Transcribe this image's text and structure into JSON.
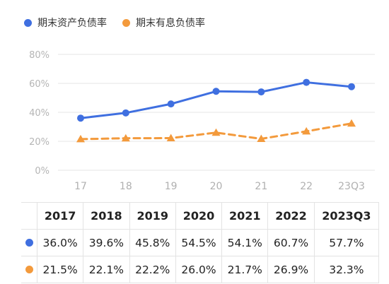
{
  "chart_data": {
    "type": "line",
    "categories": [
      "17",
      "18",
      "19",
      "20",
      "21",
      "22",
      "23Q3"
    ],
    "y_ticks": [
      "0%",
      "20%",
      "40%",
      "60%",
      "80%"
    ],
    "ylim": [
      0,
      80
    ],
    "grid": true,
    "legend": "top-left",
    "series": [
      {
        "name": "期末资产负债率",
        "color": "#3f6fe0",
        "style": "solid",
        "marker": "circle",
        "values": [
          36.0,
          39.6,
          45.8,
          54.5,
          54.1,
          60.7,
          57.7
        ]
      },
      {
        "name": "期末有息负债率",
        "color": "#f39a3c",
        "style": "dashed",
        "marker": "triangle",
        "values": [
          21.5,
          22.1,
          22.2,
          26.0,
          21.7,
          26.9,
          32.3
        ]
      }
    ]
  },
  "table": {
    "headers": [
      "2017",
      "2018",
      "2019",
      "2020",
      "2021",
      "2022",
      "2023Q3"
    ],
    "rows": [
      {
        "color": "#3f6fe0",
        "cells": [
          "36.0%",
          "39.6%",
          "45.8%",
          "54.5%",
          "54.1%",
          "60.7%",
          "57.7%"
        ]
      },
      {
        "color": "#f39a3c",
        "cells": [
          "21.5%",
          "22.1%",
          "22.2%",
          "26.0%",
          "21.7%",
          "26.9%",
          "32.3%"
        ]
      }
    ]
  }
}
